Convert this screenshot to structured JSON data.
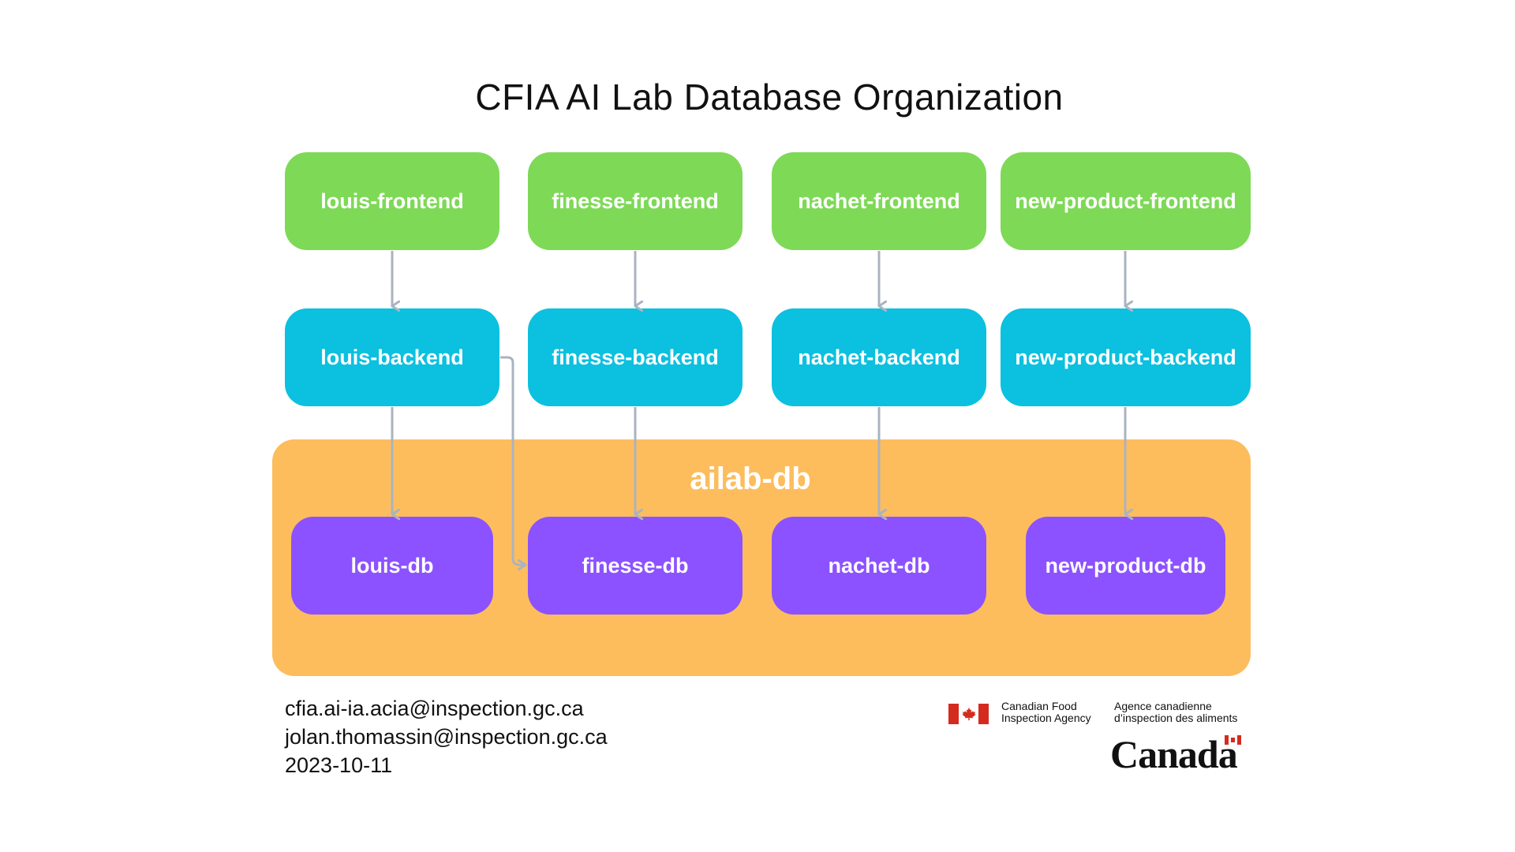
{
  "title": "CFIA AI Lab Database Organization",
  "frontends": [
    "louis-frontend",
    "finesse-frontend",
    "nachet-frontend",
    "new-product-frontend"
  ],
  "backends": [
    "louis-backend",
    "finesse-backend",
    "nachet-backend",
    "new-product-backend"
  ],
  "database": {
    "label": "ailab-db",
    "schemas": [
      "louis-db",
      "finesse-db",
      "nachet-db",
      "new-product-db"
    ]
  },
  "contacts": {
    "email1": "cfia.ai-ia.acia@inspection.gc.ca",
    "email2": "jolan.thomassin@inspection.gc.ca",
    "date": "2023-10-11"
  },
  "logo": {
    "agency_en": [
      "Canadian Food",
      "Inspection Agency"
    ],
    "agency_fr": [
      "Agence canadienne",
      "d’inspection des aliments"
    ],
    "wordmark": "Canada"
  },
  "colors": {
    "frontend": "#7ed957",
    "backend": "#0cc0df",
    "db": "#8c52ff",
    "container": "#fdbd5d",
    "arrow": "#aab4c0"
  }
}
